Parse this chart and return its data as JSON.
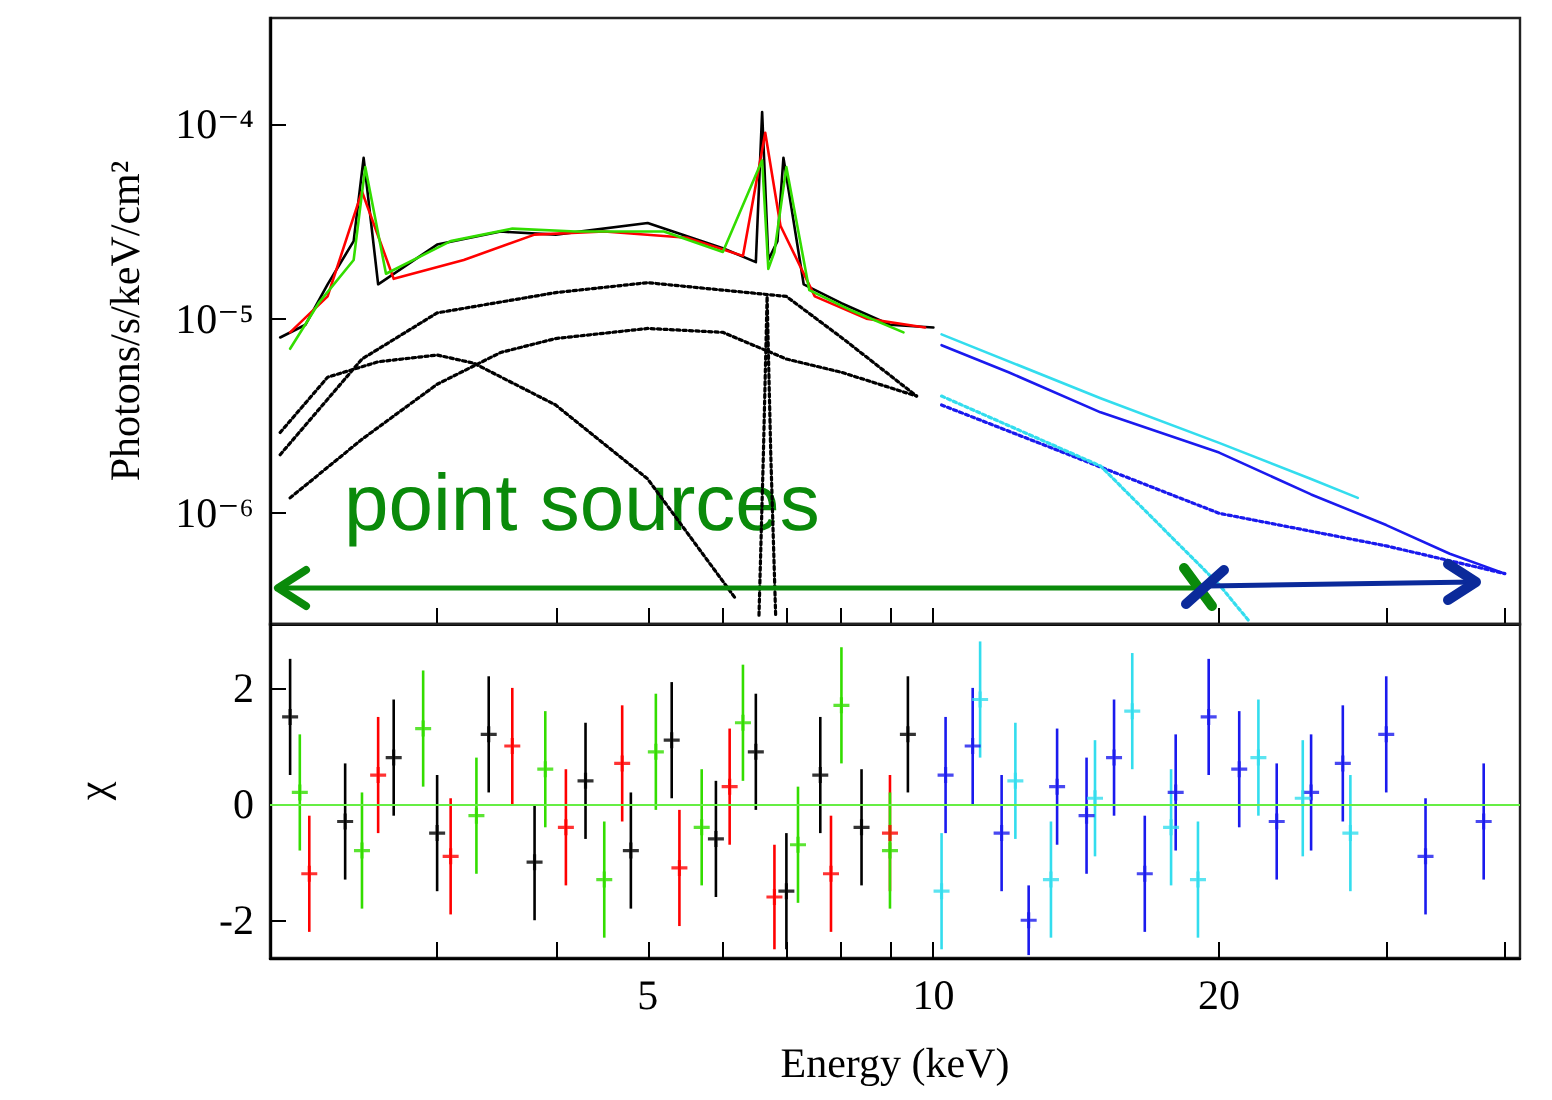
{
  "chart_data": [
    {
      "type": "line",
      "ylabel": "Photons/s/keV/cm²",
      "log": "xy",
      "tick_labels": "y",
      "marker": "none",
      "xlim": [
        2,
        41.5
      ],
      "ylim": [
        2.7e-07,
        0.00035
      ],
      "xticks": [
        {
          "value": 2,
          "label": null
        },
        {
          "value": 3,
          "label": null
        },
        {
          "value": 4,
          "label": null
        },
        5,
        {
          "value": 6,
          "label": null
        },
        {
          "value": 7,
          "label": null
        },
        {
          "value": 8,
          "label": null
        },
        {
          "value": 9,
          "label": null
        },
        10,
        20,
        {
          "value": 30,
          "label": null
        },
        {
          "value": 40,
          "label": null
        }
      ],
      "yticks": [
        {
          "value": 0.0001,
          "label": "10⁻⁴"
        },
        {
          "value": 1e-05,
          "label": "10⁻⁵"
        },
        {
          "value": 1e-06,
          "label": "10⁻⁶"
        }
      ],
      "annotations": [
        "point sources"
      ],
      "series": [
        {
          "color": "#000000",
          "x": [
            2.05,
            2.18,
            2.3,
            2.45,
            2.51,
            2.6,
            3,
            3.5,
            4,
            5,
            6,
            6.5,
            6.6,
            6.7,
            6.85,
            6.95,
            7.3,
            8,
            9,
            10
          ],
          "values": [
            8e-06,
            9.3e-06,
            1.5e-05,
            2.5e-05,
            6.7e-05,
            1.5e-05,
            2.4e-05,
            2.8e-05,
            2.7e-05,
            3.1e-05,
            2.3e-05,
            1.95e-05,
            0.000115,
            2e-05,
            2.5e-05,
            6.7e-05,
            1.5e-05,
            1.2e-05,
            9.3e-06,
            9e-06
          ]
        },
        {
          "color": "#ff0000",
          "x": [
            2.1,
            2.3,
            2.5,
            2.7,
            3.2,
            3.8,
            4.5,
            5.5,
            6.3,
            6.65,
            6.9,
            7.5,
            8.5,
            9.8
          ],
          "values": [
            8.5e-06,
            1.3e-05,
            4.5e-05,
            1.6e-05,
            2e-05,
            2.7e-05,
            2.8e-05,
            2.6e-05,
            2.1e-05,
            9e-05,
            3e-05,
            1.3e-05,
            1e-05,
            9e-06
          ]
        },
        {
          "color": "#33dd00",
          "x": [
            2.1,
            2.25,
            2.45,
            2.52,
            2.65,
            3.1,
            3.6,
            4.2,
            5.2,
            6,
            6.6,
            6.7,
            6.8,
            7,
            7.4,
            8.2,
            9.3
          ],
          "values": [
            7e-06,
            1.2e-05,
            2e-05,
            6e-05,
            1.7e-05,
            2.5e-05,
            2.9e-05,
            2.8e-05,
            2.8e-05,
            2.2e-05,
            6.5e-05,
            1.8e-05,
            2.2e-05,
            6e-05,
            1.4e-05,
            1.1e-05,
            8.5e-06
          ]
        },
        {
          "color": "#1a1aee",
          "x": [
            10.2,
            12,
            15,
            20,
            25,
            30,
            35,
            40
          ],
          "values": [
            7.3e-06,
            5.3e-06,
            3.3e-06,
            2.05e-06,
            1.25e-06,
            8.7e-07,
            6.2e-07,
            4.9e-07
          ]
        },
        {
          "color": "#33ddee",
          "x": [
            10.2,
            15,
            20,
            25,
            28
          ],
          "values": [
            8.3e-06,
            3.9e-06,
            2.3e-06,
            1.5e-06,
            1.2e-06
          ]
        },
        {
          "color": "#000000",
          "line_style": "dotted",
          "x": [
            2.05,
            2.5,
            3,
            4,
            5,
            7,
            8,
            9.6
          ],
          "values": [
            2e-06,
            6.2e-06,
            1.07e-05,
            1.36e-05,
            1.53e-05,
            1.3e-05,
            8e-06,
            4e-06
          ]
        },
        {
          "color": "#000000",
          "line_style": "dotted",
          "x": [
            2.1,
            2.5,
            3,
            3.5,
            4,
            5,
            6,
            7,
            8,
            9.6
          ],
          "values": [
            1.2e-06,
            2.4e-06,
            4.6e-06,
            6.7e-06,
            7.9e-06,
            8.9e-06,
            8.5e-06,
            6.2e-06,
            5.3e-06,
            4e-06
          ]
        },
        {
          "color": "#000000",
          "line_style": "dotted",
          "x": [
            2.05,
            2.3,
            2.6,
            3,
            3.28,
            4,
            5,
            6.2
          ],
          "values": [
            2.6e-06,
            5e-06,
            6e-06,
            6.5e-06,
            5.9e-06,
            3.6e-06,
            1.5e-06,
            3.6e-07
          ]
        },
        {
          "color": "#000000",
          "line_style": "dotted",
          "x": [
            6.55,
            6.62,
            6.68,
            6.74,
            6.82
          ],
          "values": [
            3e-07,
            2e-06,
            1.3e-05,
            2e-06,
            3e-07
          ]
        },
        {
          "color": "#1a1aee",
          "line_style": "dotted",
          "x": [
            10.2,
            20,
            30,
            40
          ],
          "values": [
            3.6e-06,
            1e-06,
            6.8e-07,
            4.9e-07
          ]
        },
        {
          "color": "#33ddee",
          "line_style": "dotted",
          "x": [
            10.2,
            15,
            20,
            21.5
          ],
          "values": [
            4e-06,
            1.75e-06,
            4.3e-07,
            2.8e-07
          ]
        }
      ]
    },
    {
      "type": "scatter",
      "xlabel": "Energy (keV)",
      "ylabel": "χ",
      "log": "x",
      "marker": "cross",
      "xlim": [
        2,
        41.5
      ],
      "ylim": [
        -2.65,
        3.1
      ],
      "xticks": [
        {
          "value": 2,
          "label": null
        },
        {
          "value": 3,
          "label": null
        },
        {
          "value": 4,
          "label": null
        },
        5,
        {
          "value": 6,
          "label": null
        },
        {
          "value": 7,
          "label": null
        },
        {
          "value": 8,
          "label": null
        },
        {
          "value": 9,
          "label": null
        },
        10,
        20,
        {
          "value": 30,
          "label": null
        },
        {
          "value": 40,
          "label": null
        }
      ],
      "yticks": [
        -2,
        0,
        2
      ],
      "ref_lines": [
        {
          "axis": "y",
          "value": 0,
          "color": "#66ee44"
        }
      ],
      "series": [
        {
          "color": "#000000",
          "x": [
            2.1,
            2.4,
            2.7,
            3,
            3.4,
            3.8,
            4.3,
            4.8,
            5.3,
            5.9,
            6.5,
            7,
            7.6,
            8.4,
            9.4
          ],
          "values": [
            1.5,
            -0.3,
            0.8,
            -0.5,
            1.2,
            -1,
            0.4,
            -0.8,
            1.1,
            -0.6,
            0.9,
            -1.5,
            0.5,
            -0.4,
            1.2
          ],
          "errors": [
            1,
            1,
            1,
            1,
            1,
            1,
            1,
            1,
            1,
            1,
            1,
            1,
            1,
            1,
            1
          ]
        },
        {
          "color": "#ff0000",
          "x": [
            2.2,
            2.6,
            3.1,
            3.6,
            4.1,
            4.7,
            5.4,
            6.1,
            6.8,
            7.8,
            9
          ],
          "values": [
            -1.2,
            0.5,
            -0.9,
            1,
            -0.4,
            0.7,
            -1.1,
            0.3,
            -1.6,
            -1.2,
            -0.5
          ],
          "errors": [
            1,
            1,
            1,
            1,
            1,
            1,
            1,
            1,
            0.9,
            1,
            1
          ]
        },
        {
          "color": "#33dd00",
          "x": [
            2.15,
            2.5,
            2.9,
            3.3,
            3.9,
            4.5,
            5.1,
            5.7,
            6.3,
            7.2,
            8,
            9
          ],
          "values": [
            0.2,
            -0.8,
            1.3,
            -0.2,
            0.6,
            -1.3,
            0.9,
            -0.4,
            1.4,
            -0.7,
            1.7,
            -0.8
          ],
          "errors": [
            1,
            1,
            1,
            1,
            1,
            1,
            1,
            1,
            1,
            1,
            1,
            1
          ]
        },
        {
          "color": "#1a1aee",
          "x": [
            10.3,
            11,
            11.8,
            12.6,
            13.5,
            14.5,
            15.5,
            16.7,
            18,
            19.5,
            21,
            23,
            25,
            27,
            30,
            33,
            38
          ],
          "values": [
            0.5,
            1,
            -0.5,
            -2,
            0.3,
            -0.2,
            0.8,
            -1.2,
            0.2,
            1.5,
            0.6,
            -0.3,
            0.2,
            0.7,
            1.2,
            -0.9,
            -0.3
          ],
          "errors": [
            1,
            1,
            1,
            0.6,
            1,
            1,
            1,
            1,
            1,
            1,
            1,
            1,
            1,
            1,
            1,
            1,
            1
          ]
        },
        {
          "color": "#33ddee",
          "x": [
            10.2,
            11.2,
            12.2,
            13.3,
            14.8,
            16.2,
            17.8,
            19,
            22,
            24.5,
            27.5
          ],
          "values": [
            -1.5,
            1.8,
            0.4,
            -1.3,
            0.1,
            1.6,
            -0.4,
            -1.3,
            0.8,
            0.1,
            -0.5
          ],
          "errors": [
            1,
            1,
            1,
            1,
            1,
            1,
            1,
            1,
            1,
            1,
            1
          ]
        }
      ]
    }
  ]
}
